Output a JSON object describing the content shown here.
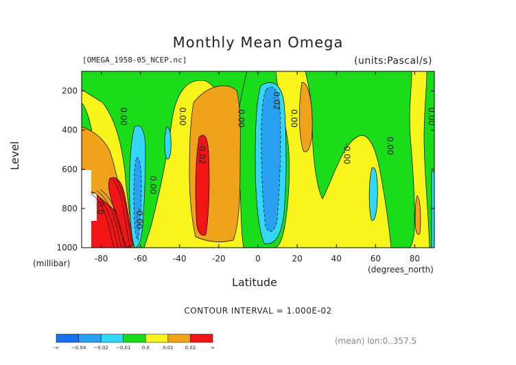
{
  "chart_data": {
    "type": "contour",
    "title": "Monthly Mean Omega",
    "file_label": "[OMEGA_1958-05_NCEP.nc]",
    "units_label": "(units:Pascal/s)",
    "xlabel": "Latitude",
    "x_unit_label": "(degrees_north)",
    "ylabel": "Level",
    "y_unit_label": "(millibar)",
    "xlim": [
      -90,
      90
    ],
    "ylim": [
      1000,
      100
    ],
    "y_reversed": true,
    "x_ticks": [
      -80,
      -60,
      -40,
      -20,
      0,
      20,
      40,
      60,
      80
    ],
    "y_ticks": [
      1000,
      800,
      600,
      400,
      200
    ],
    "contour_interval_text": "CONTOUR INTERVAL = 1.000E-02",
    "mean_text": "(mean) lon:0..357.5",
    "colorbar": {
      "labels": [
        "-∞",
        "−0.04",
        "−0.02",
        "−0.01",
        "0.0",
        "0.01",
        "0.02",
        "∞"
      ],
      "colors": [
        "#1a6ff0",
        "#2aa0f0",
        "#31d8f8",
        "#19dd19",
        "#f7f51c",
        "#f0a21b",
        "#f21515"
      ]
    },
    "contour_labels": [
      {
        "text": "0.00",
        "x": -70,
        "y": 330
      },
      {
        "text": "0.00",
        "x": -40,
        "y": 330
      },
      {
        "text": "0.00",
        "x": -10,
        "y": 340
      },
      {
        "text": "0.02",
        "x": 8,
        "y": 250
      },
      {
        "text": "0.00",
        "x": 17,
        "y": 340
      },
      {
        "text": "-0.02",
        "x": -30,
        "y": 520
      },
      {
        "text": "-0.00",
        "x": 44,
        "y": 520
      },
      {
        "text": "0.00",
        "x": 66,
        "y": 480
      },
      {
        "text": "0.00",
        "x": 87,
        "y": 330
      },
      {
        "text": "0.00",
        "x": -55,
        "y": 680
      },
      {
        "text": "-0.0",
        "x": -82,
        "y": 790
      },
      {
        "text": "-0.00",
        "x": -62,
        "y": 850
      }
    ]
  }
}
